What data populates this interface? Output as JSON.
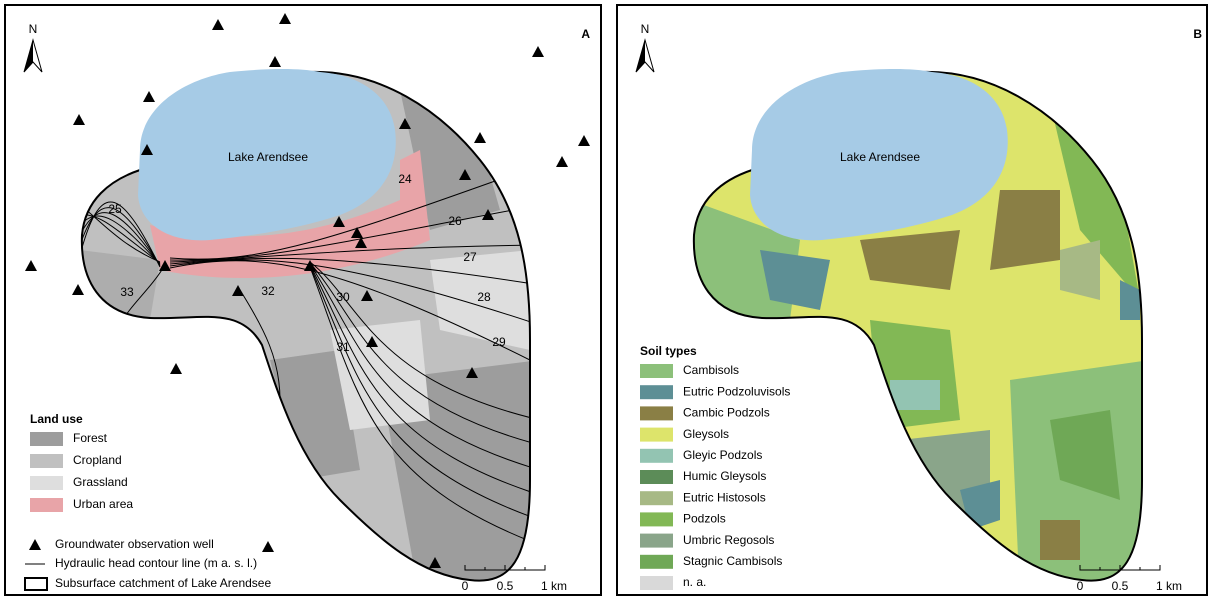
{
  "panels": [
    {
      "letter": "A",
      "north": "N",
      "lake_label": "Lake Arendsee",
      "contour_labels": [
        25,
        33,
        32,
        30,
        31,
        24,
        26,
        27,
        28,
        29
      ],
      "legend": {
        "title": "Land use",
        "items": [
          {
            "label": "Forest",
            "color": "#9d9d9d"
          },
          {
            "label": "Cropland",
            "color": "#c0c0c0"
          },
          {
            "label": "Grassland",
            "color": "#dedede"
          },
          {
            "label": "Urban area",
            "color": "#e8a4a8"
          }
        ]
      },
      "symbols": [
        "Groundwater observation well",
        "Hydraulic head contour line (m a. s. l.)",
        "Subsurface catchment of Lake Arendsee"
      ],
      "scale": [
        "0",
        "0.5",
        "1 km"
      ]
    },
    {
      "letter": "B",
      "north": "N",
      "lake_label": "Lake Arendsee",
      "legend": {
        "title": "Soil types",
        "items": [
          {
            "label": "Cambisols",
            "color": "#8cc07a"
          },
          {
            "label": "Eutric Podzoluvisols",
            "color": "#5d8f95"
          },
          {
            "label": "Cambic Podzols",
            "color": "#8a7f45"
          },
          {
            "label": "Gleysols",
            "color": "#dde46b"
          },
          {
            "label": "Gleyic Podzols",
            "color": "#93c4b2"
          },
          {
            "label": "Humic Gleysols",
            "color": "#5c8c58"
          },
          {
            "label": "Eutric Histosols",
            "color": "#a7b985"
          },
          {
            "label": "Podzols",
            "color": "#82b855"
          },
          {
            "label": "Umbric Regosols",
            "color": "#8aa58a"
          },
          {
            "label": "Stagnic Cambisols",
            "color": "#6fa856"
          },
          {
            "label": "n. a.",
            "color": "#d9d9d9"
          }
        ]
      },
      "scale": [
        "0",
        "0.5",
        "1 km"
      ]
    }
  ]
}
